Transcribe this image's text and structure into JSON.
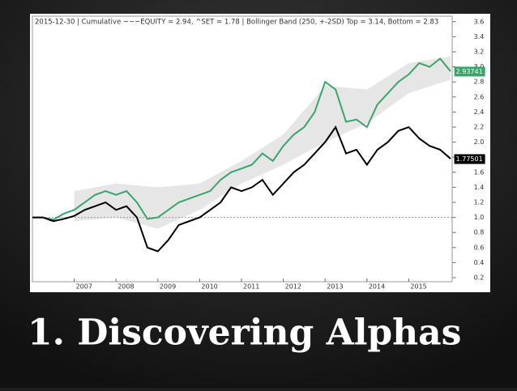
{
  "chart_data": {
    "type": "line",
    "header": "2015-12-30  |  Cumulative ~~~EQUITY = 2.94, ^SET = 1.78  |  Bollinger Band (250, +-2SD)  Top = 3.14, Bottom = 2.83",
    "title": "1. Discovering Alphas",
    "x": [
      2006,
      2006.25,
      2006.5,
      2006.75,
      2007,
      2007.25,
      2007.5,
      2007.75,
      2008,
      2008.25,
      2008.5,
      2008.75,
      2009,
      2009.25,
      2009.5,
      2009.75,
      2010,
      2010.25,
      2010.5,
      2010.75,
      2011,
      2011.25,
      2011.5,
      2011.75,
      2012,
      2012.25,
      2012.5,
      2012.75,
      2013,
      2013.25,
      2013.5,
      2013.75,
      2014,
      2014.25,
      2014.5,
      2014.75,
      2015,
      2015.25,
      2015.5,
      2015.75,
      2016
    ],
    "series": [
      {
        "name": "EQUITY",
        "color": "#3aa56a",
        "end_value": 2.93741,
        "values": [
          1.0,
          1.0,
          0.97,
          1.05,
          1.1,
          1.2,
          1.3,
          1.35,
          1.3,
          1.35,
          1.2,
          0.98,
          1.0,
          1.1,
          1.2,
          1.25,
          1.3,
          1.35,
          1.5,
          1.6,
          1.65,
          1.7,
          1.85,
          1.75,
          1.95,
          2.1,
          2.2,
          2.4,
          2.8,
          2.7,
          2.27,
          2.3,
          2.2,
          2.5,
          2.65,
          2.8,
          2.9,
          3.05,
          3.0,
          3.11,
          2.94
        ]
      },
      {
        "name": "^SET",
        "color": "#000000",
        "end_value": 1.77501,
        "values": [
          1.0,
          1.0,
          0.95,
          0.98,
          1.02,
          1.1,
          1.15,
          1.2,
          1.1,
          1.15,
          1.0,
          0.6,
          0.55,
          0.7,
          0.9,
          0.95,
          1.0,
          1.1,
          1.2,
          1.4,
          1.35,
          1.4,
          1.5,
          1.3,
          1.45,
          1.6,
          1.7,
          1.85,
          2.0,
          2.2,
          1.85,
          1.9,
          1.7,
          1.9,
          2.0,
          2.15,
          2.2,
          2.05,
          1.95,
          1.9,
          1.78
        ]
      }
    ],
    "band": {
      "color": "#e6e6e6",
      "x": [
        2007,
        2008,
        2009,
        2010,
        2011,
        2012,
        2013,
        2014,
        2015,
        2016
      ],
      "upper": [
        1.35,
        1.45,
        1.4,
        1.45,
        1.75,
        2.1,
        2.75,
        2.7,
        3.05,
        3.14
      ],
      "lower": [
        0.95,
        1.0,
        0.85,
        1.1,
        1.45,
        1.7,
        2.0,
        2.25,
        2.65,
        2.83
      ]
    },
    "hline": 1,
    "xlim": [
      2006,
      2016.05
    ],
    "xticks": [
      2007,
      2008,
      2009,
      2010,
      2011,
      2012,
      2013,
      2014,
      2015
    ],
    "ylim": [
      0.1,
      3.7
    ],
    "yticks": [
      0.2,
      0.4,
      0.6,
      0.8,
      {
        "value": 1,
        "label": "1.0"
      },
      1.2,
      1.4,
      1.6,
      1.8,
      {
        "value": 2,
        "label": "2.0"
      },
      2.2,
      2.4,
      2.6,
      2.8,
      {
        "value": 3,
        "label": "3.0"
      },
      3.2,
      3.4,
      3.6
    ]
  }
}
